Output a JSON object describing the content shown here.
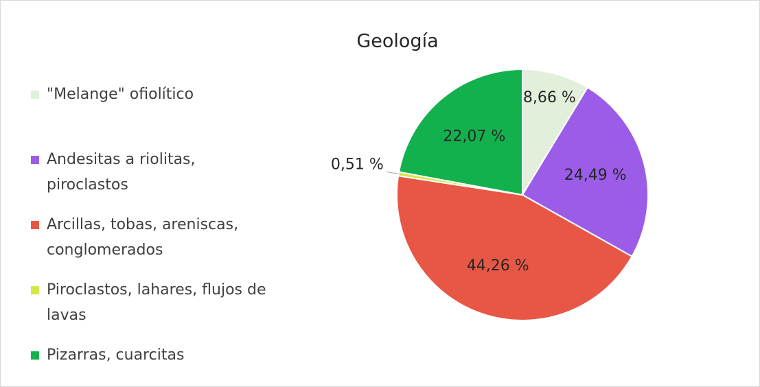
{
  "chart_data": {
    "type": "pie",
    "title": "Geología",
    "categories": [
      "\"Melange\" ofiolítico",
      "Andesitas a riolitas, piroclastos",
      "Arcillas, tobas, areniscas, conglomerados",
      "Piroclastos, lahares, flujos de lavas",
      "Pizarras, cuarcitas"
    ],
    "values": [
      8.66,
      24.49,
      44.26,
      0.51,
      22.07
    ],
    "value_labels": [
      "8,66 %",
      "24,49 %",
      "44,26 %",
      "0,51 %",
      "22,07 %"
    ],
    "colors": [
      "#e2efda",
      "#9b5de8",
      "#e85745",
      "#d5e74b",
      "#12b14d"
    ],
    "legend": "left"
  }
}
